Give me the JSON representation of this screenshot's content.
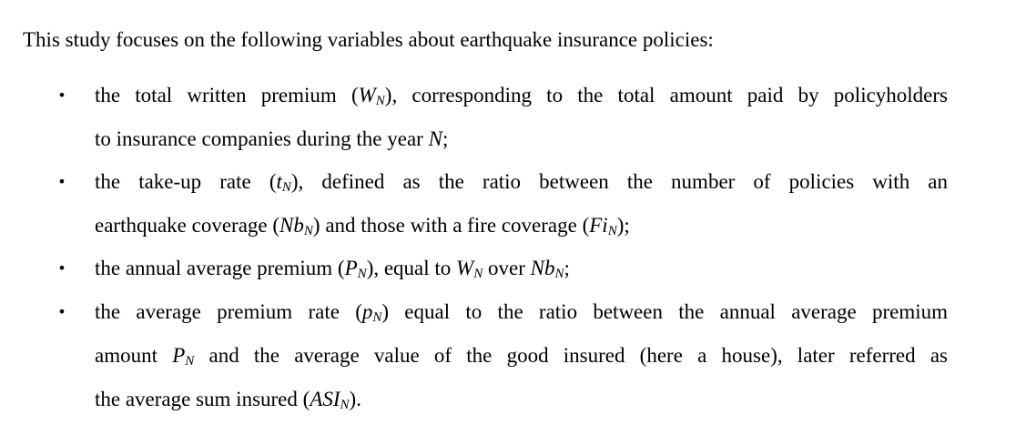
{
  "intro": "This study focuses on the following variables about earthquake insurance policies:",
  "items": [
    {
      "bullet": "•",
      "l1_a": "the total written premium (",
      "W": "W",
      "N1": "N",
      "l1_b": "), corresponding to the total amount paid by policyholders",
      "l2_a": "to insurance companies during the year ",
      "N2": "N",
      "l2_b": ";"
    },
    {
      "bullet": "•",
      "l1_a": "the take-up rate (",
      "t": "t",
      "N1": "N",
      "l1_b": "), defined as the ratio between the number of policies with an",
      "l2_a": "earthquake coverage (",
      "Nb": "Nb",
      "N2": "N",
      "l2_b": ") and those with a fire coverage (",
      "Fi": "Fi",
      "N3": "N",
      "l2_c": ");"
    },
    {
      "bullet": "•",
      "a": "the annual average premium (",
      "P": "P",
      "N1": "N",
      "b": "), equal to ",
      "W": "W",
      "N2": "N",
      "c": " over ",
      "Nb": "Nb",
      "N3": "N",
      "d": ";"
    },
    {
      "bullet": "•",
      "l1_a": "the average premium rate (",
      "p": "p",
      "N1": "N",
      "l1_b": ") equal to the ratio between the annual average premium",
      "l2_a": "amount ",
      "P": "P",
      "N2": "N",
      "l2_b": " and the average value of the good insured (here a house), later referred as",
      "l3_a": "the average sum insured (",
      "ASI": "ASI",
      "N3": "N",
      "l3_b": ")."
    }
  ]
}
